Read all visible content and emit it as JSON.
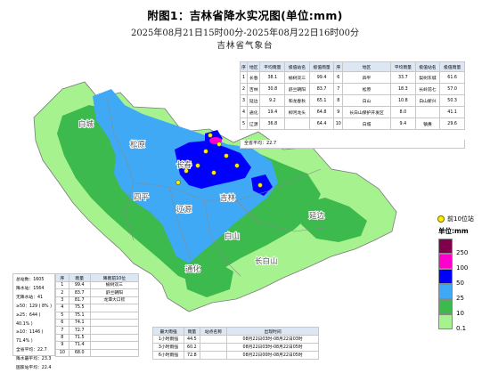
{
  "header": {
    "title": "附图1：吉林省降水实况图(单位:mm)",
    "period": "2025年08月21日15时00分-2025年08月22日16时00分",
    "org": "吉林省气象台"
  },
  "region_table": {
    "headers": [
      "序",
      "地区",
      "平均雨量",
      "极值站名",
      "极值雨量",
      "序",
      "地区",
      "平均雨量",
      "极值站名",
      "极值雨量"
    ],
    "rows": [
      [
        "1",
        "长春",
        "38.1",
        "榆树双三",
        "99.4",
        "6",
        "四平",
        "33.7",
        "梨树东城",
        "61.6"
      ],
      [
        "2",
        "吉林",
        "30.8",
        "舒兰朝阳",
        "83.7",
        "7",
        "松原",
        "18.3",
        "长岭前七",
        "57.0"
      ],
      [
        "3",
        "延边",
        "9.2",
        "和龙春秋",
        "65.1",
        "8",
        "白山",
        "10.8",
        "白山新兴",
        "50.3"
      ],
      [
        "4",
        "通化",
        "19.4",
        "柳河龙头",
        "64.8",
        "9",
        "长白山保护开发区",
        "8.0",
        "",
        "41.1"
      ],
      [
        "5",
        "辽源",
        "36.8",
        "",
        "64.4",
        "10",
        "白城",
        "9.4",
        "镇赉",
        "29.6"
      ]
    ],
    "average_label": "全省平均：22.7"
  },
  "station_stats": [
    "总站数：1605",
    "降水站：1564",
    "无降水站：41",
    "≥50：129 ( 8% )",
    "≥25：644 ( 40.1% )",
    "≥10：1146 ( 71.4% )",
    "全省平均：22.7",
    "降水最平均：23.3",
    "国家站平均：22.4"
  ],
  "top10_table": {
    "headers": [
      "序",
      "雨量",
      "降雨前10位"
    ],
    "rows": [
      [
        "1",
        "99.4",
        "榆树双三"
      ],
      [
        "2",
        "83.7",
        "舒兰朝阳"
      ],
      [
        "3",
        "81.7",
        "龙潭大口钦"
      ],
      [
        "4",
        "75.5",
        ""
      ],
      [
        "5",
        "75.1",
        ""
      ],
      [
        "6",
        "74.1",
        ""
      ],
      [
        "7",
        "72.7",
        ""
      ],
      [
        "8",
        "71.5",
        ""
      ],
      [
        "9",
        "71.4",
        ""
      ],
      [
        "10",
        "68.0",
        ""
      ]
    ]
  },
  "hourly_table": {
    "headers": [
      "最大雨强",
      "雨量",
      "站点名称",
      "出现时间"
    ],
    "rows": [
      [
        "1小时雨强",
        "44.5",
        "",
        "08月22日03时-08月22日03时"
      ],
      [
        "3小时雨强",
        "60.2",
        "",
        "08月22日03时-08月22日05时"
      ],
      [
        "6小时雨强",
        "72.8",
        "",
        "08月22日00时-08月22日05时"
      ]
    ]
  },
  "legend": {
    "marker_label": "前10位站",
    "unit_label": "单位:mm",
    "thresholds": [
      "250",
      "100",
      "50",
      "25",
      "10",
      "0.1"
    ],
    "colors": [
      "#80004d",
      "#ff00cc",
      "#0000ff",
      "#3fa9f5",
      "#3dba4e",
      "#a6f28f"
    ]
  },
  "map": {
    "labels": {
      "baicheng": "白城",
      "songyuan": "松原",
      "changchun": "长春",
      "siping": "四平",
      "jilin": "吉林",
      "liaoyuan": "辽源",
      "yanbian": "延边",
      "tonghua": "通化",
      "baishan": "白山",
      "changbaishan": "长白山"
    },
    "fill_colors": {
      "light": "#a6f28f",
      "green": "#3dba4e",
      "blue": "#3fa9f5",
      "deep": "#0000ff",
      "magenta": "#ff00cc"
    }
  }
}
